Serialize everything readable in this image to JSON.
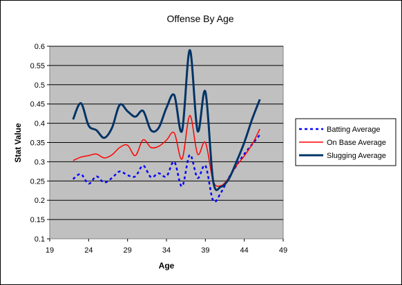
{
  "chart_data": {
    "type": "line",
    "title": "Offense By Age",
    "xlabel": "Age",
    "ylabel": "Stat Value",
    "xlim": [
      19,
      49
    ],
    "ylim": [
      0.1,
      0.6
    ],
    "x_ticks": [
      "19",
      "24",
      "29",
      "34",
      "39",
      "44",
      "49"
    ],
    "y_ticks": [
      "0.1",
      "0.15",
      "0.2",
      "0.25",
      "0.3",
      "0.35",
      "0.4",
      "0.45",
      "0.5",
      "0.55",
      "0.6"
    ],
    "grid": "horizontal",
    "plot_background": "#C0C0C0",
    "legend_position": "right",
    "series": [
      {
        "name": "Batting Average",
        "color": "#0000FF",
        "style": "dotted",
        "x": [
          22,
          23,
          24,
          25,
          26,
          27,
          28,
          29,
          30,
          31,
          32,
          33,
          34,
          35,
          36,
          37,
          38,
          39,
          40,
          41,
          42,
          43,
          44,
          45,
          46
        ],
        "y": [
          0.255,
          0.268,
          0.243,
          0.262,
          0.246,
          0.258,
          0.275,
          0.265,
          0.262,
          0.29,
          0.26,
          0.27,
          0.262,
          0.3,
          0.236,
          0.318,
          0.258,
          0.29,
          0.199,
          0.22,
          0.258,
          0.29,
          0.32,
          0.345,
          0.37
        ]
      },
      {
        "name": "On Base Average",
        "color": "#FF0000",
        "style": "solid",
        "x": [
          22,
          23,
          24,
          25,
          26,
          27,
          28,
          29,
          30,
          31,
          32,
          33,
          34,
          35,
          36,
          37,
          38,
          39,
          40,
          41,
          42,
          43,
          44,
          45,
          46
        ],
        "y": [
          0.303,
          0.312,
          0.316,
          0.32,
          0.31,
          0.318,
          0.337,
          0.343,
          0.316,
          0.357,
          0.337,
          0.34,
          0.356,
          0.375,
          0.307,
          0.42,
          0.32,
          0.35,
          0.25,
          0.238,
          0.258,
          0.29,
          0.315,
          0.345,
          0.385
        ]
      },
      {
        "name": "Slugging Average",
        "color": "#003366",
        "style": "solid",
        "x": [
          22,
          23,
          24,
          25,
          26,
          27,
          28,
          29,
          30,
          31,
          32,
          33,
          34,
          35,
          36,
          37,
          38,
          39,
          40,
          41,
          42,
          43,
          44,
          45,
          46
        ],
        "y": [
          0.41,
          0.452,
          0.394,
          0.382,
          0.362,
          0.388,
          0.448,
          0.431,
          0.417,
          0.432,
          0.382,
          0.388,
          0.44,
          0.473,
          0.38,
          0.59,
          0.38,
          0.482,
          0.25,
          0.235,
          0.255,
          0.3,
          0.35,
          0.41,
          0.462
        ]
      }
    ]
  }
}
